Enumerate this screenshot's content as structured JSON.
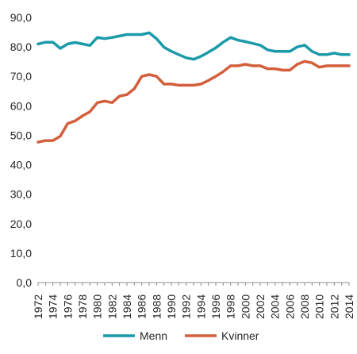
{
  "chart_data": {
    "type": "line",
    "title": "",
    "xlabel": "",
    "ylabel": "",
    "ylim": [
      0,
      90
    ],
    "y_ticks": [
      "0,0",
      "10,0",
      "20,0",
      "30,0",
      "40,0",
      "50,0",
      "60,0",
      "70,0",
      "80,0",
      "90,0"
    ],
    "x": [
      1972,
      1973,
      1974,
      1975,
      1976,
      1977,
      1978,
      1979,
      1980,
      1981,
      1982,
      1983,
      1984,
      1985,
      1986,
      1987,
      1988,
      1989,
      1990,
      1991,
      1992,
      1993,
      1994,
      1995,
      1996,
      1997,
      1998,
      1999,
      2000,
      2001,
      2002,
      2003,
      2004,
      2005,
      2006,
      2007,
      2008,
      2009,
      2010,
      2011,
      2012,
      2013,
      2014
    ],
    "x_tick_labels": [
      "1972",
      "1974",
      "1976",
      "1978",
      "1980",
      "1982",
      "1984",
      "1986",
      "1988",
      "1990",
      "1992",
      "1994",
      "1996",
      "1998",
      "2000",
      "2002",
      "2004",
      "2006",
      "2008",
      "2010",
      "2012",
      "2014"
    ],
    "grid": false,
    "legend_position": "bottom",
    "series": [
      {
        "name": "Menn",
        "color": "#1b9aaa",
        "values": [
          81.0,
          81.6,
          81.6,
          79.5,
          81.0,
          81.5,
          81.0,
          80.5,
          83.2,
          82.8,
          83.2,
          83.7,
          84.2,
          84.2,
          84.2,
          84.8,
          82.8,
          79.9,
          78.5,
          77.4,
          76.3,
          75.8,
          76.8,
          78.2,
          79.7,
          81.6,
          83.2,
          82.3,
          81.8,
          81.2,
          80.6,
          79.0,
          78.5,
          78.5,
          78.5,
          80.0,
          80.6,
          78.5,
          77.4,
          77.4,
          77.9,
          77.4,
          77.4
        ]
      },
      {
        "name": "Kvinner",
        "color": "#d35f3c",
        "values": [
          47.7,
          48.2,
          48.2,
          49.7,
          54.0,
          54.9,
          56.6,
          58.0,
          61.1,
          61.6,
          61.1,
          63.3,
          63.8,
          65.8,
          70.0,
          70.6,
          70.0,
          67.4,
          67.4,
          67.0,
          67.0,
          67.0,
          67.4,
          68.6,
          70.0,
          71.6,
          73.6,
          73.6,
          74.1,
          73.6,
          73.6,
          72.6,
          72.6,
          72.1,
          72.1,
          74.1,
          75.1,
          74.6,
          73.1,
          73.6,
          73.6,
          73.6,
          73.6
        ]
      }
    ]
  }
}
